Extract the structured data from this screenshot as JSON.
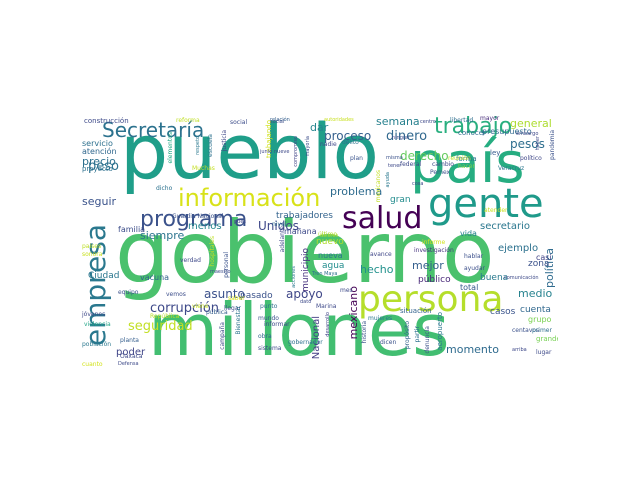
{
  "words": [
    {
      "t": "gobierno",
      "c": "#4ac16d"
    },
    {
      "t": "pueblo",
      "c": "#1f9e89"
    },
    {
      "t": "millones",
      "c": "#42be71"
    },
    {
      "t": "país",
      "c": "#26ad81"
    },
    {
      "t": "gente",
      "c": "#1f9a8a"
    },
    {
      "t": "persona",
      "c": "#b5de2b"
    },
    {
      "t": "salud",
      "c": "#440154"
    },
    {
      "t": "información",
      "c": "#d8e219"
    },
    {
      "t": "empresa",
      "c": "#2a788e"
    },
    {
      "t": "programa",
      "c": "#3b528b"
    },
    {
      "t": "Secretaría",
      "c": "#2c728e"
    },
    {
      "t": "trabajo",
      "c": "#29af7f"
    },
    {
      "t": "seguridad",
      "c": "#c2df23"
    },
    {
      "t": "corrupción",
      "c": "#3e4989"
    },
    {
      "t": "proceso",
      "c": "#35608d"
    },
    {
      "t": "dinero",
      "c": "#31688e"
    },
    {
      "t": "semana",
      "c": "#27808e"
    },
    {
      "t": "general",
      "c": "#addc30"
    },
    {
      "t": "pesos",
      "c": "#2e6e8e"
    },
    {
      "t": "presupuesto",
      "c": "#30698e"
    },
    {
      "t": "dar",
      "c": "#25858e"
    },
    {
      "t": "derecho",
      "c": "#65cb5e"
    },
    {
      "t": "peso",
      "c": "#2c728e"
    },
    {
      "t": "precio",
      "c": "#2d708e"
    },
    {
      "t": "seguir",
      "c": "#3a538b"
    },
    {
      "t": "problema",
      "c": "#2f6c8e"
    },
    {
      "t": "secretario",
      "c": "#2a778e"
    },
    {
      "t": "siempre",
      "c": "#2b748e"
    },
    {
      "t": "menos",
      "c": "#24868e"
    },
    {
      "t": "Unidos",
      "c": "#3f4889"
    },
    {
      "t": "trabajadores",
      "c": "#33638d"
    },
    {
      "t": "ejemplo",
      "c": "#2c718e"
    },
    {
      "t": "mejor",
      "c": "#355f8d"
    },
    {
      "t": "hecho",
      "c": "#21918c"
    },
    {
      "t": "medio",
      "c": "#26828e"
    },
    {
      "t": "política",
      "c": "#2f6b8e"
    },
    {
      "t": "apoyo",
      "c": "#3f4788"
    },
    {
      "t": "asunto",
      "c": "#3b518b"
    },
    {
      "t": "poder",
      "c": "#404688"
    },
    {
      "t": "momento",
      "c": "#2f6b8e"
    },
    {
      "t": "mexicano",
      "c": "#440154"
    },
    {
      "t": "Nacional",
      "c": "#433e85"
    },
    {
      "t": "municipio",
      "c": "#46327e"
    },
    {
      "t": "gran",
      "c": "#228c8d"
    },
    {
      "t": "vida",
      "c": "#26828e"
    },
    {
      "t": "casi",
      "c": "#414487"
    },
    {
      "t": "zona",
      "c": "#3b528b"
    },
    {
      "t": "público",
      "c": "#482878"
    },
    {
      "t": "buena",
      "c": "#297a8e"
    },
    {
      "t": "agua",
      "c": "#228d8d"
    },
    {
      "t": "nueva",
      "c": "#2a778e"
    },
    {
      "t": "nuevo",
      "c": "#b0dd2f"
    },
    {
      "t": "Ciudad",
      "c": "#2a768e"
    },
    {
      "t": "vacuna",
      "c": "#33638d"
    },
    {
      "t": "familia",
      "c": "#3d4e8a"
    },
    {
      "t": "mañana",
      "c": "#3e4a89"
    },
    {
      "t": "pasado",
      "c": "#3b528b"
    },
    {
      "t": "cuenta",
      "c": "#31688e"
    },
    {
      "t": "casos",
      "c": "#3a548c"
    },
    {
      "t": "grupo",
      "c": "#7ad151"
    },
    {
      "t": "total",
      "c": "#38598c"
    },
    {
      "t": "servicio",
      "c": "#2d708e"
    },
    {
      "t": "atención",
      "c": "#31688e"
    },
    {
      "t": "proyecto",
      "c": "#2d708e"
    },
    {
      "t": "construcción",
      "c": "#3e4a89"
    },
    {
      "t": "reforma",
      "c": "#c0df25"
    },
    {
      "t": "social",
      "c": "#3d4d8a"
    },
    {
      "t": "relación",
      "c": "#35608d"
    },
    {
      "t": "autoridades",
      "c": "#c8e020"
    },
    {
      "t": "libertad",
      "c": "#2e6e8e"
    },
    {
      "t": "mayor",
      "c": "#472d7b"
    },
    {
      "t": "conocer",
      "c": "#2e6d8e"
    },
    {
      "t": "centro",
      "c": "#3e4989"
    },
    {
      "t": "forma",
      "c": "#2c728e"
    },
    {
      "t": "hacer",
      "c": "#7fd34e"
    },
    {
      "t": "ley",
      "c": "#375b8d"
    },
    {
      "t": "Veracruz",
      "c": "#2a778e"
    },
    {
      "t": "federal",
      "c": "#3e4989"
    },
    {
      "t": "cambio",
      "c": "#3e4a89"
    },
    {
      "t": "Pemex",
      "c": "#3b528b"
    },
    {
      "t": "investigación",
      "c": "#46337f"
    },
    {
      "t": "hablar",
      "c": "#3c508b"
    },
    {
      "t": "ayudar",
      "c": "#3c4f8a"
    },
    {
      "t": "comunicación",
      "c": "#3e4a89"
    },
    {
      "t": "informe",
      "c": "#d2e21b"
    },
    {
      "t": "situación",
      "c": "#33638d"
    },
    {
      "t": "mujeres",
      "c": "#2a768e"
    },
    {
      "t": "historia",
      "c": "#3a538b"
    },
    {
      "t": "propósito",
      "c": "#33638d"
    },
    {
      "t": "partir",
      "c": "#2d708e"
    },
    {
      "t": "denuncia",
      "c": "#3c508b"
    },
    {
      "t": "aeropuerto",
      "c": "#2a788e"
    },
    {
      "t": "centavos",
      "c": "#3b518b"
    },
    {
      "t": "primer",
      "c": "#2e6e8e"
    },
    {
      "t": "grande",
      "c": "#77d153"
    },
    {
      "t": "lugar",
      "c": "#3e4a89"
    },
    {
      "t": "arriba",
      "c": "#3e4989"
    },
    {
      "t": "justicia",
      "c": "#3f4788"
    },
    {
      "t": "escuela",
      "c": "#2d718e"
    },
    {
      "t": "respeto",
      "c": "#2a788e"
    },
    {
      "t": "elementos",
      "c": "#22a785"
    },
    {
      "t": "trabajando",
      "c": "#d0e11c"
    },
    {
      "t": "dicho",
      "c": "#2c718e"
    },
    {
      "t": "Guardia Nacional",
      "c": "#3b528b"
    },
    {
      "t": "nivel",
      "c": "#2f6b8e"
    },
    {
      "t": "compromiso",
      "c": "#414487"
    },
    {
      "t": "mayoría",
      "c": "#3d4e8a"
    },
    {
      "t": "delito",
      "c": "#2c738e"
    },
    {
      "t": "plan",
      "c": "#3a548c"
    },
    {
      "t": "nadie",
      "c": "#3f4889"
    },
    {
      "t": "último",
      "c": "#b2dd2d"
    },
    {
      "t": "dólares",
      "c": "#a8db34"
    },
    {
      "t": "jóvenes",
      "c": "#3e4a89"
    },
    {
      "t": "violencia",
      "c": "#20a486"
    },
    {
      "t": "equipo",
      "c": "#3b518b"
    },
    {
      "t": "vemos",
      "c": "#3d4e8a"
    },
    {
      "t": "verdad",
      "c": "#3e4989"
    },
    {
      "t": "personal",
      "c": "#3b528b"
    },
    {
      "t": "pública",
      "c": "#355f8d"
    },
    {
      "t": "llegar",
      "c": "#3e4989"
    },
    {
      "t": "mundo",
      "c": "#3b528b"
    },
    {
      "t": "obra",
      "c": "#31688e"
    },
    {
      "t": "sistema",
      "c": "#3e4a89"
    },
    {
      "t": "campaña",
      "c": "#3e4a89"
    },
    {
      "t": "Bienestar",
      "c": "#2c738e"
    },
    {
      "t": "Oaxaca",
      "c": "#3e4a89"
    },
    {
      "t": "gobernador",
      "c": "#2d708e"
    },
    {
      "t": "desarrollo",
      "c": "#414487"
    },
    {
      "t": "acciones",
      "c": "#2a788e"
    },
    {
      "t": "Marina",
      "c": "#3e4989"
    },
    {
      "t": "Tren Maya",
      "c": "#2e6f8e"
    },
    {
      "t": "avance",
      "c": "#3f4788"
    },
    {
      "t": "dicen",
      "c": "#3b528b"
    },
    {
      "t": "punto",
      "c": "#2e6e8e"
    },
    {
      "t": "informar",
      "c": "#3e4989"
    },
    {
      "t": "cuanto",
      "c": "#d2e21b"
    },
    {
      "t": "Defensa",
      "c": "#3e4a89"
    },
    {
      "t": "planta",
      "c": "#355e8d"
    },
    {
      "t": "República",
      "c": "#b8de29"
    },
    {
      "t": "Muchas",
      "c": "#c5df23"
    },
    {
      "t": "población",
      "c": "#2a788e"
    },
    {
      "t": "atender",
      "c": "#c6e020"
    },
    {
      "t": "reunión",
      "c": "#bddf26"
    },
    {
      "t": "pandemia",
      "c": "#3b528b"
    },
    {
      "t": "embargo",
      "c": "#3e4989"
    },
    {
      "t": "político",
      "c": "#3f4788"
    },
    {
      "t": "haber",
      "c": "#3e4a89"
    },
    {
      "t": "misma",
      "c": "#3b528b"
    },
    {
      "t": "tener",
      "c": "#3e4989"
    },
    {
      "t": "mes",
      "c": "#3e4a89"
    },
    {
      "t": "maestro",
      "c": "#3d4e8a"
    },
    {
      "t": "hospitales",
      "c": "#c0df25"
    },
    {
      "t": "saber",
      "c": "#d8e219"
    },
    {
      "t": "viene",
      "c": "#c6e020"
    },
    {
      "t": "adelante",
      "c": "#3f4788"
    },
    {
      "t": "dato",
      "c": "#3e4a89"
    },
    {
      "t": "mexicanos",
      "c": "#c2df23"
    },
    {
      "t": "paises",
      "c": "#bddf26"
    },
    {
      "t": "sonora",
      "c": "#c8e020"
    },
    {
      "t": "ningún",
      "c": "#3e4989"
    },
    {
      "t": "cosa",
      "c": "#3e4a89"
    },
    {
      "t": "ayuda",
      "c": "#2a788e"
    },
    {
      "t": "junio",
      "c": "#3e4989"
    },
    {
      "t": "nueve",
      "c": "#3e4a89"
    },
    {
      "t": "social",
      "c": "#3d4e8a"
    },
    {
      "t": "pues",
      "c": "#3e4989"
    }
  ]
}
